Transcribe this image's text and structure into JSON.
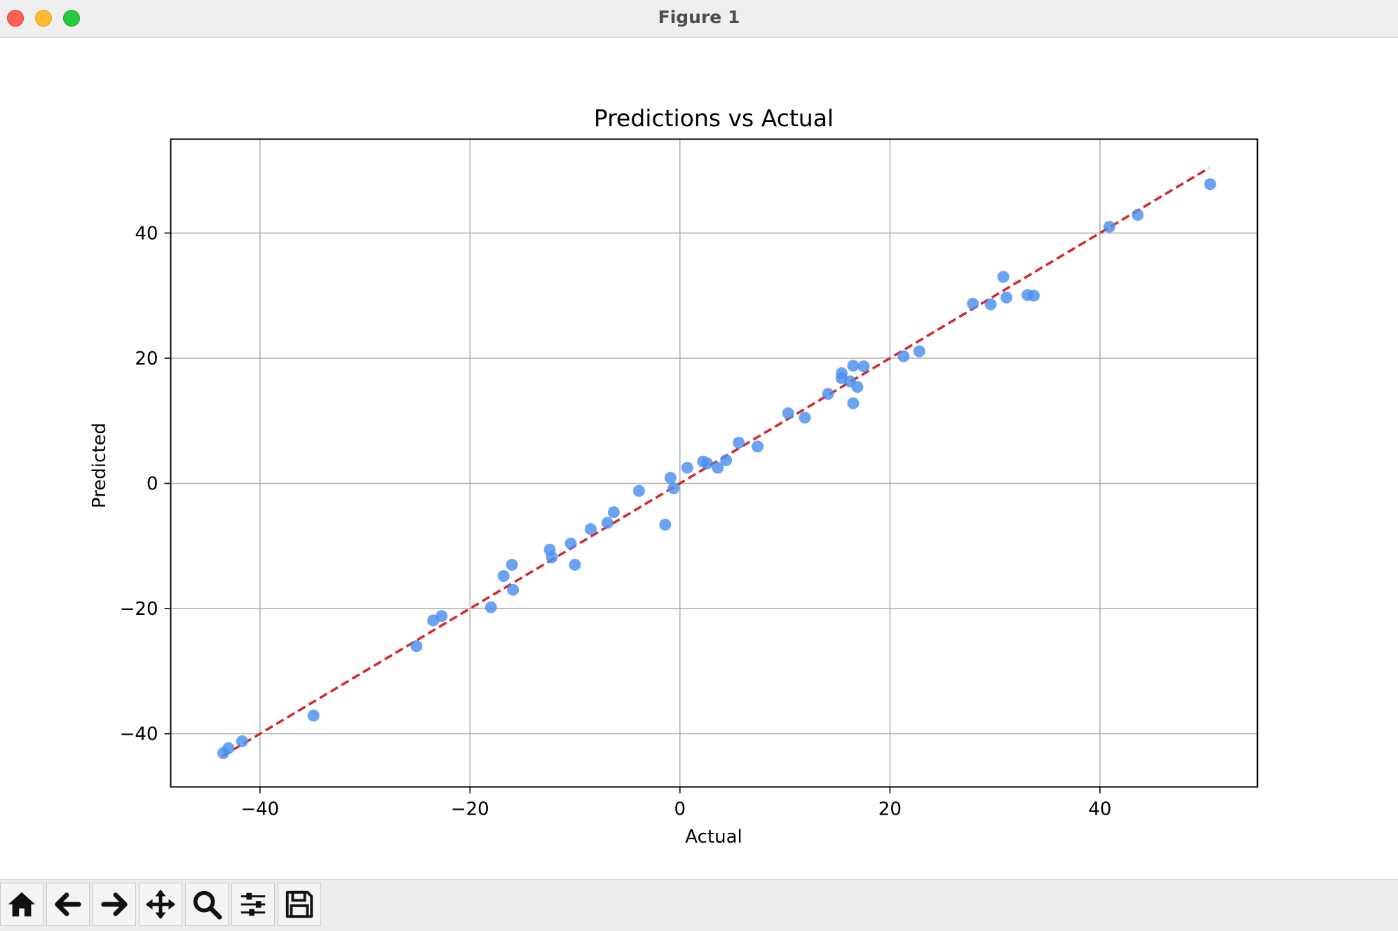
{
  "window": {
    "title": "Figure 1"
  },
  "toolbar": {
    "buttons": [
      {
        "name": "home-button",
        "icon": "home-icon"
      },
      {
        "name": "back-button",
        "icon": "arrow-left-icon"
      },
      {
        "name": "forward-button",
        "icon": "arrow-right-icon"
      },
      {
        "name": "pan-button",
        "icon": "move-icon"
      },
      {
        "name": "zoom-button",
        "icon": "magnifier-icon"
      },
      {
        "name": "configure-subplots-button",
        "icon": "sliders-icon"
      },
      {
        "name": "save-button",
        "icon": "floppy-disk-icon"
      }
    ]
  },
  "chart_data": {
    "type": "scatter",
    "title": "Predictions vs Actual",
    "xlabel": "Actual",
    "ylabel": "Predicted",
    "xlim": [
      -48.5,
      55
    ],
    "ylim": [
      -48.5,
      55
    ],
    "xticks": [
      -40,
      -20,
      0,
      20,
      40
    ],
    "yticks": [
      -40,
      -20,
      0,
      20,
      40
    ],
    "xtick_labels": [
      "−40",
      "−20",
      "0",
      "20",
      "40"
    ],
    "ytick_labels": [
      "−40",
      "−20",
      "0",
      "20",
      "40"
    ],
    "grid": true,
    "point_color": "#4a8ff0",
    "line_color": "#d62728",
    "reference_line": {
      "style": "dashed",
      "from": [
        -43.6,
        -43.6
      ],
      "to": [
        50.4,
        50.4
      ]
    },
    "points": [
      [
        -43.5,
        -43.1
      ],
      [
        -43.0,
        -42.3
      ],
      [
        -41.7,
        -41.2
      ],
      [
        -34.9,
        -37.1
      ],
      [
        -25.1,
        -26.0
      ],
      [
        -23.5,
        -21.9
      ],
      [
        -22.7,
        -21.2
      ],
      [
        -18.0,
        -19.8
      ],
      [
        -16.8,
        -14.8
      ],
      [
        -16.0,
        -13.0
      ],
      [
        -15.9,
        -17.0
      ],
      [
        -12.4,
        -10.6
      ],
      [
        -12.2,
        -11.8
      ],
      [
        -10.4,
        -9.6
      ],
      [
        -10.0,
        -13.0
      ],
      [
        -8.5,
        -7.3
      ],
      [
        -6.9,
        -6.3
      ],
      [
        -6.3,
        -4.6
      ],
      [
        -3.9,
        -1.2
      ],
      [
        -1.4,
        -6.6
      ],
      [
        -0.9,
        0.9
      ],
      [
        -0.6,
        -0.8
      ],
      [
        0.7,
        2.5
      ],
      [
        2.2,
        3.5
      ],
      [
        2.6,
        3.2
      ],
      [
        3.6,
        2.5
      ],
      [
        4.4,
        3.7
      ],
      [
        5.6,
        6.5
      ],
      [
        7.4,
        5.9
      ],
      [
        10.3,
        11.2
      ],
      [
        11.9,
        10.5
      ],
      [
        14.1,
        14.3
      ],
      [
        15.4,
        17.6
      ],
      [
        15.4,
        16.8
      ],
      [
        16.2,
        16.3
      ],
      [
        16.5,
        18.8
      ],
      [
        16.5,
        12.8
      ],
      [
        16.9,
        15.4
      ],
      [
        17.5,
        18.7
      ],
      [
        21.3,
        20.3
      ],
      [
        22.8,
        21.1
      ],
      [
        27.9,
        28.7
      ],
      [
        29.6,
        28.6
      ],
      [
        30.8,
        33.0
      ],
      [
        31.1,
        29.7
      ],
      [
        33.1,
        30.1
      ],
      [
        33.7,
        30.0
      ],
      [
        40.9,
        41.0
      ],
      [
        43.6,
        42.9
      ],
      [
        50.5,
        47.8
      ]
    ]
  }
}
